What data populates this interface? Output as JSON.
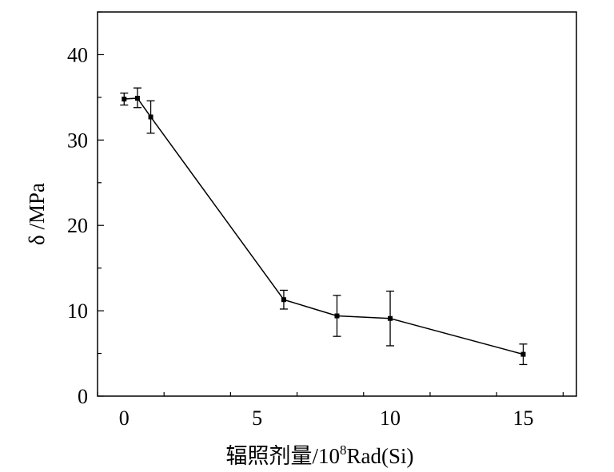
{
  "chart_data": {
    "type": "scatter",
    "title": "",
    "xlabel": "辐照剂量/10",
    "xlabel_sup": "8",
    "xlabel_tail": "Rad(Si)",
    "ylabel": "δ /MPa",
    "xlim": [
      -1,
      17
    ],
    "ylim": [
      0,
      45
    ],
    "x_major_ticks": [
      0,
      5,
      10,
      15
    ],
    "y_major_ticks": [
      0,
      10,
      20,
      30,
      40
    ],
    "x_tick_labels": [
      "0",
      "5",
      "10",
      "15"
    ],
    "y_tick_labels": [
      "0",
      "10",
      "20",
      "30",
      "40"
    ],
    "grid": false,
    "legend": "none",
    "line_color": "#000000",
    "marker": "square",
    "series": [
      {
        "x": [
          0,
          0.5,
          1,
          6,
          8,
          10,
          15
        ],
        "y": [
          34.8,
          34.9,
          32.7,
          11.3,
          9.4,
          9.1,
          4.9
        ],
        "err_low": [
          0.7,
          1.1,
          1.9,
          1.1,
          2.4,
          3.2,
          1.2
        ],
        "err_high": [
          0.7,
          1.2,
          1.9,
          1.1,
          2.4,
          3.2,
          1.2
        ]
      }
    ]
  }
}
